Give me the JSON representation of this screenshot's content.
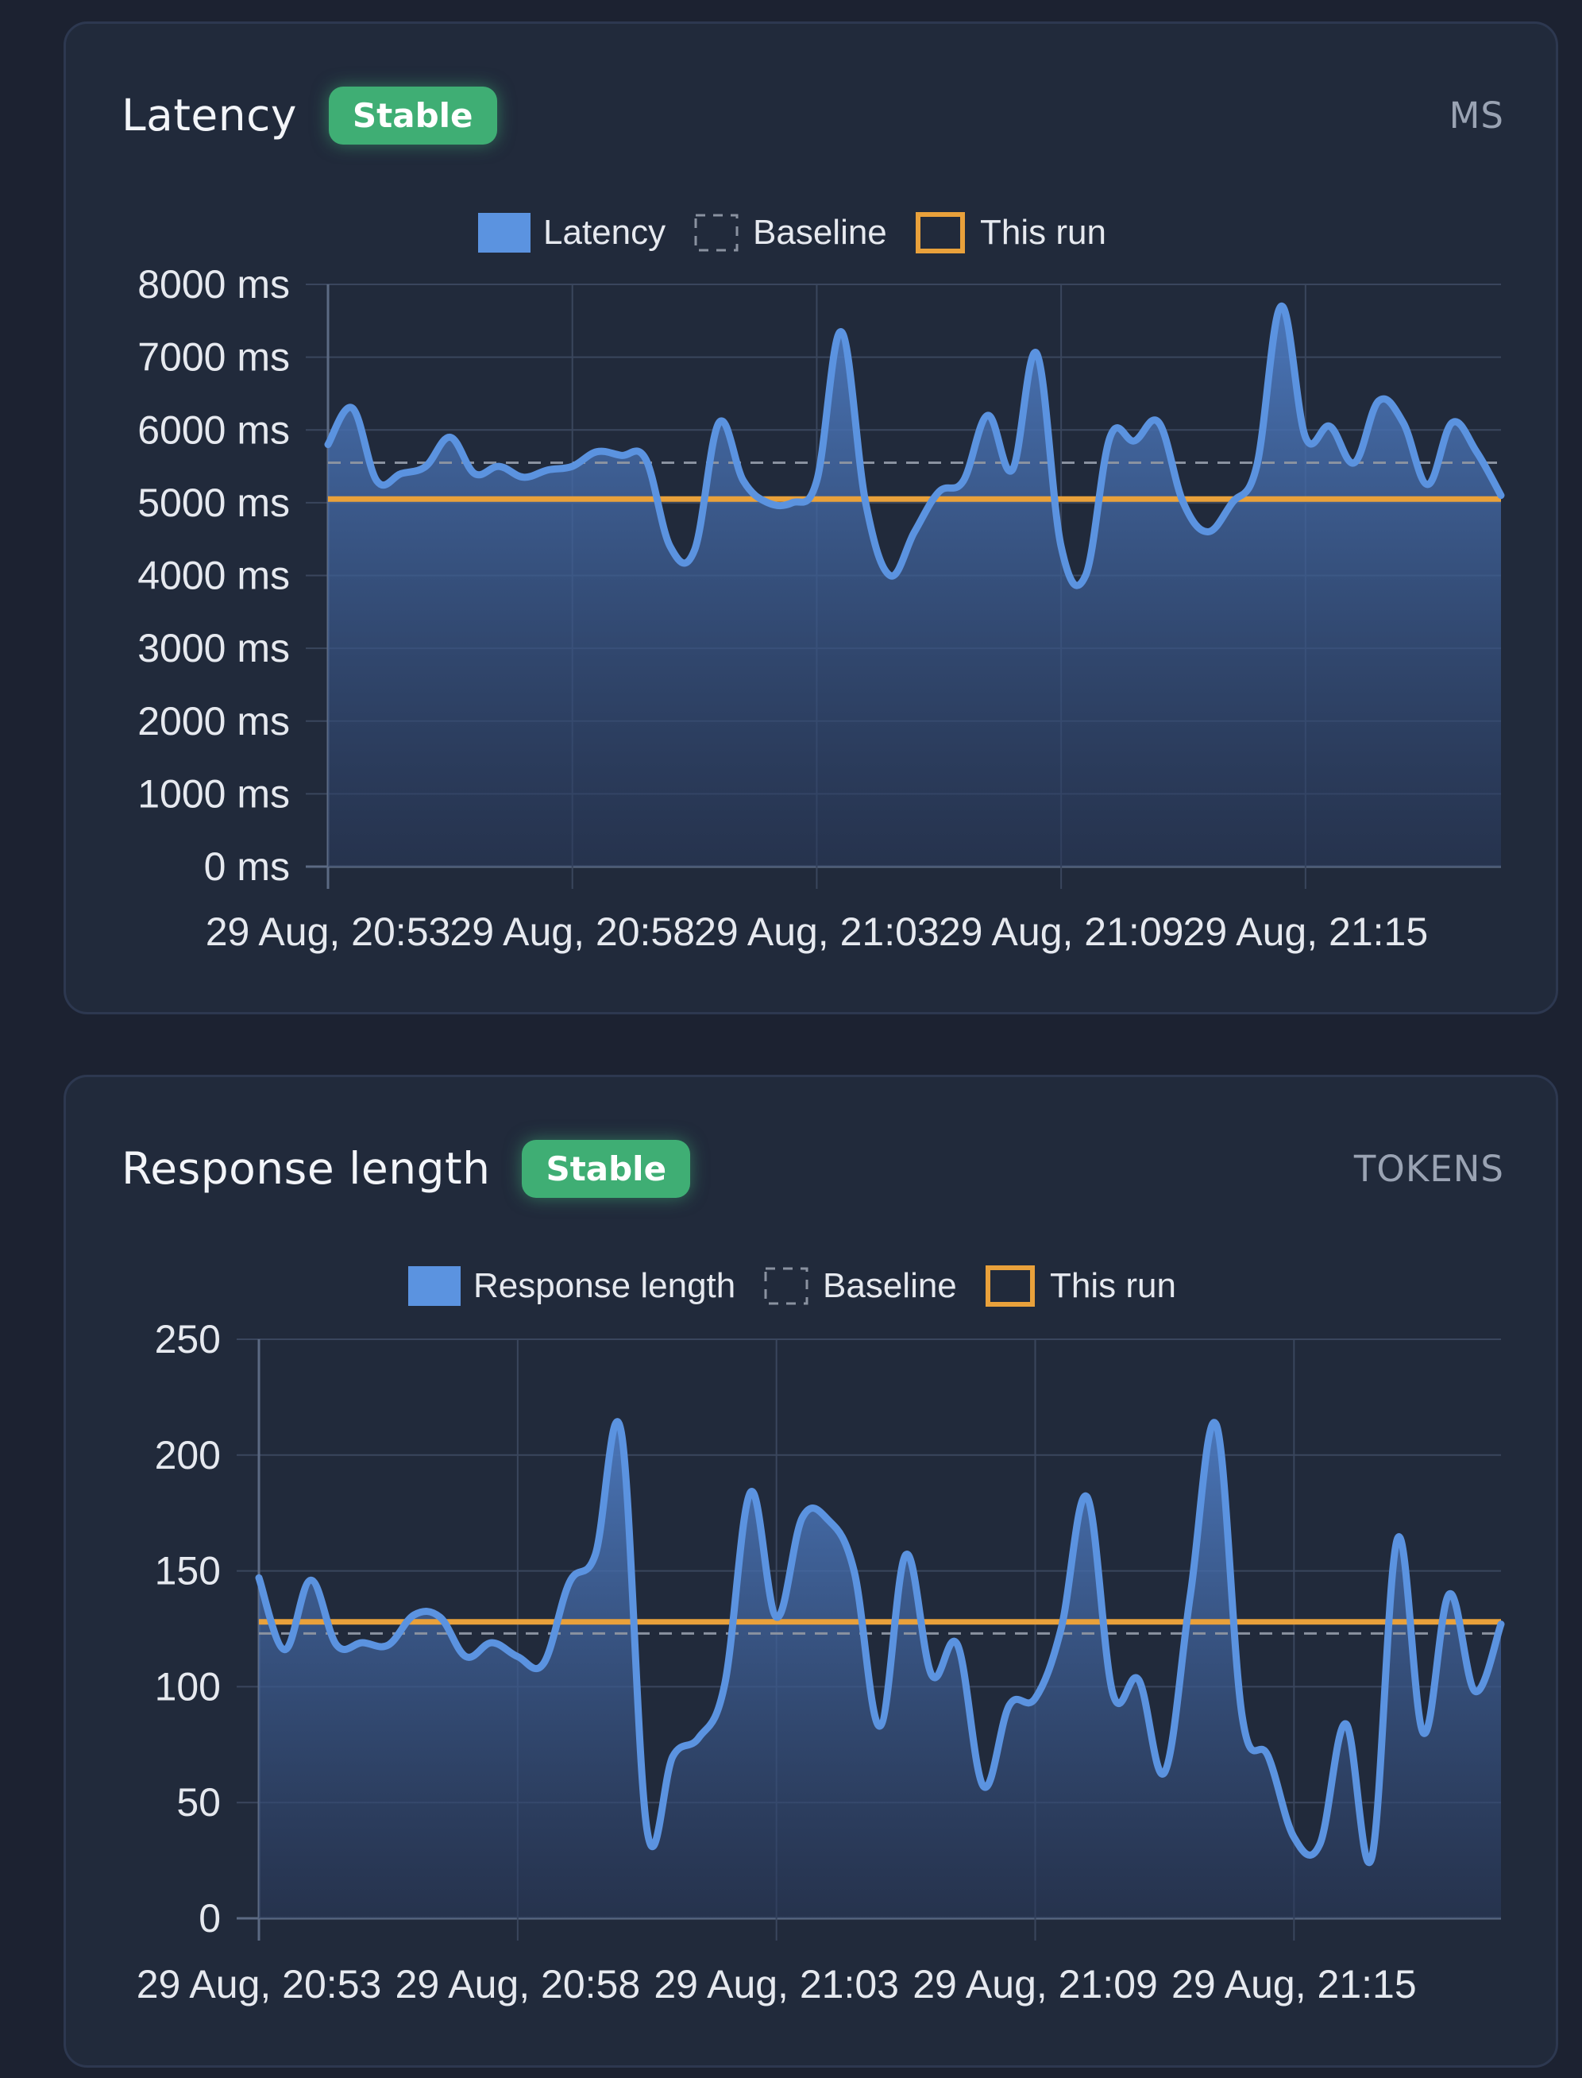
{
  "cards": [
    {
      "title": "Latency",
      "badge": "Stable",
      "unit": "MS"
    },
    {
      "title": "Response length",
      "badge": "Stable",
      "unit": "TOKENS"
    }
  ],
  "colors": {
    "background": "#1c2231",
    "panel": "#212a3b",
    "series": "#5b93e0",
    "this_run": "#e9a13b",
    "baseline": "#8a92a0",
    "badge": "#3fae74",
    "grid": "#3a465d"
  },
  "chart_data": [
    {
      "type": "area",
      "legend": {
        "placement": "top-center",
        "entries": [
          "Latency",
          "Baseline",
          "This run"
        ]
      },
      "grid": true,
      "x_ticks": [
        "29 Aug, 20:53",
        "29 Aug, 20:58",
        "29 Aug, 21:03",
        "29 Aug, 21:09",
        "29 Aug, 21:15"
      ],
      "x_tick_index": [
        0,
        10,
        20,
        30,
        40
      ],
      "y_ticks": [
        "0 ms",
        "1000 ms",
        "2000 ms",
        "3000 ms",
        "4000 ms",
        "5000 ms",
        "6000 ms",
        "7000 ms",
        "8000 ms"
      ],
      "ylim": [
        0,
        8000
      ],
      "series": [
        {
          "name": "Latency",
          "values": [
            5800,
            6300,
            5300,
            5400,
            5500,
            5900,
            5400,
            5500,
            5350,
            5450,
            5500,
            5700,
            5650,
            5600,
            4400,
            4350,
            6100,
            5300,
            5000,
            5000,
            5300,
            7350,
            5000,
            4000,
            4600,
            5150,
            5300,
            6200,
            5450,
            7050,
            4400,
            4000,
            5900,
            5850,
            6100,
            5000,
            4600,
            5000,
            5500,
            7700,
            5900,
            6050,
            5550,
            6400,
            6100,
            5250,
            6100,
            5700,
            5100
          ]
        },
        {
          "name": "Baseline",
          "values": [
            5550
          ]
        },
        {
          "name": "This run",
          "values": [
            5050
          ]
        }
      ]
    },
    {
      "type": "area",
      "legend": {
        "placement": "top-center",
        "entries": [
          "Response length",
          "Baseline",
          "This run"
        ]
      },
      "grid": true,
      "x_ticks": [
        "29 Aug, 20:53",
        "29 Aug, 20:58",
        "29 Aug, 21:03",
        "29 Aug, 21:09",
        "29 Aug, 21:15"
      ],
      "x_tick_index": [
        0,
        10,
        20,
        30,
        40
      ],
      "y_ticks": [
        "0",
        "50",
        "100",
        "150",
        "200",
        "250"
      ],
      "ylim": [
        0,
        250
      ],
      "series": [
        {
          "name": "Response length",
          "values": [
            147,
            116,
            146,
            118,
            119,
            118,
            131,
            130,
            113,
            119,
            113,
            110,
            145,
            157,
            210,
            38,
            70,
            78,
            101,
            184,
            130,
            173,
            172,
            150,
            83,
            157,
            105,
            118,
            57,
            92,
            95,
            125,
            182,
            97,
            103,
            63,
            140,
            213,
            87,
            70,
            35,
            32,
            84,
            26,
            164,
            80,
            140,
            98,
            127
          ]
        },
        {
          "name": "Baseline",
          "values": [
            123
          ]
        },
        {
          "name": "This run",
          "values": [
            128
          ]
        }
      ]
    }
  ]
}
